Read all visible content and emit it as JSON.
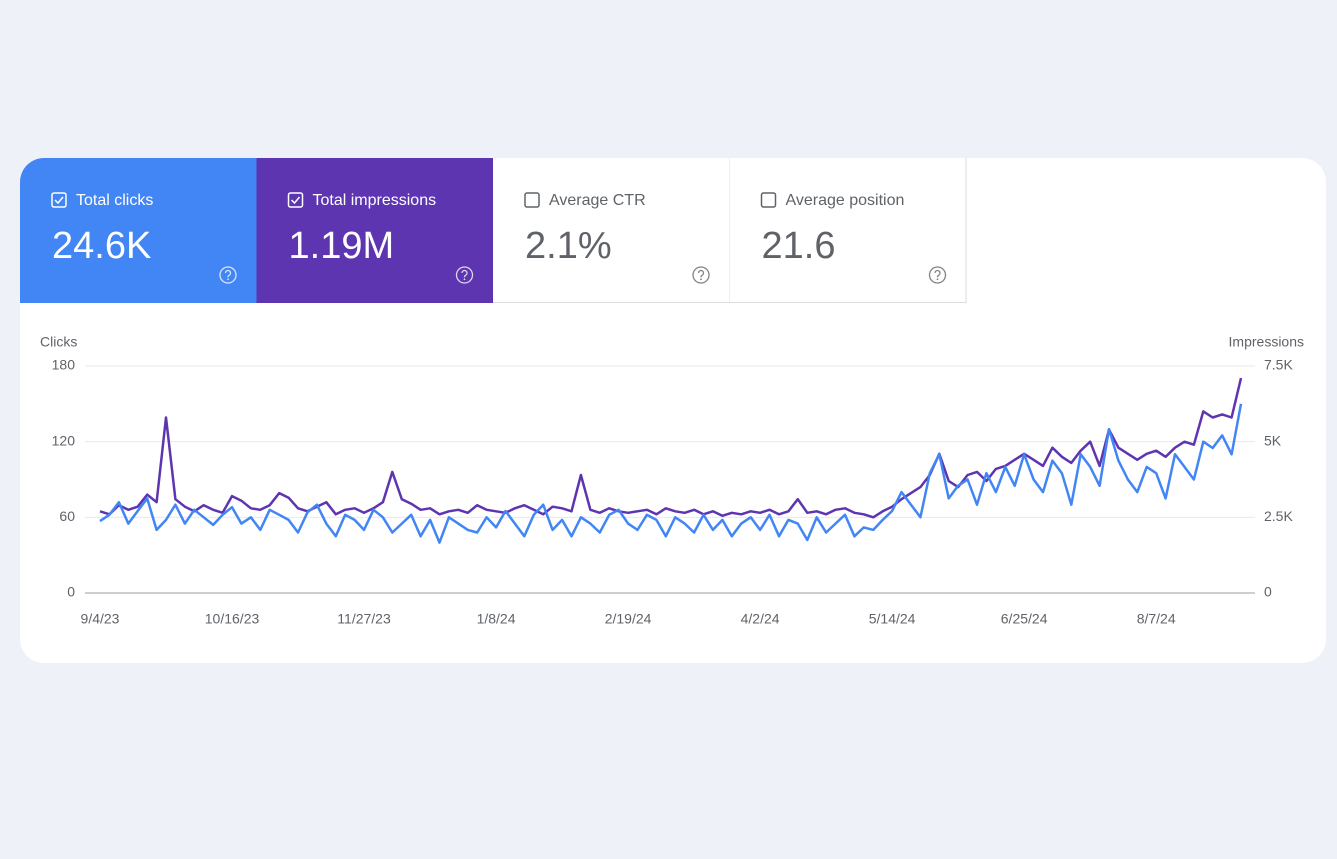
{
  "cards": [
    {
      "label": "Total clicks",
      "value": "24.6K",
      "checked": true,
      "color": "#4285f4"
    },
    {
      "label": "Total impressions",
      "value": "1.19M",
      "checked": true,
      "color": "#5e35b1"
    },
    {
      "label": "Average CTR",
      "value": "2.1%",
      "checked": false,
      "color": "#ffffff"
    },
    {
      "label": "Average position",
      "value": "21.6",
      "checked": false,
      "color": "#ffffff"
    }
  ],
  "chart_data": {
    "type": "line",
    "categories": [
      "9/4/23",
      null,
      null,
      null,
      null,
      null,
      null,
      null,
      null,
      null,
      null,
      null,
      null,
      null,
      "10/16/23",
      null,
      null,
      null,
      null,
      null,
      null,
      null,
      null,
      null,
      null,
      null,
      null,
      null,
      "11/27/23",
      null,
      null,
      null,
      null,
      null,
      null,
      null,
      null,
      null,
      null,
      null,
      null,
      null,
      "1/8/24",
      null,
      null,
      null,
      null,
      null,
      null,
      null,
      null,
      null,
      null,
      null,
      null,
      null,
      "2/19/24",
      null,
      null,
      null,
      null,
      null,
      null,
      null,
      null,
      null,
      null,
      null,
      null,
      null,
      "4/2/24",
      null,
      null,
      null,
      null,
      null,
      null,
      null,
      null,
      null,
      null,
      null,
      null,
      null,
      "5/14/24",
      null,
      null,
      null,
      null,
      null,
      null,
      null,
      null,
      null,
      null,
      null,
      null,
      null,
      "6/25/24",
      null,
      null,
      null,
      null,
      null,
      null,
      null,
      null,
      null,
      null,
      null,
      null,
      null,
      "8/7/24",
      null,
      null,
      null,
      null,
      null,
      null,
      null,
      null,
      null
    ],
    "series": [
      {
        "name": "Clicks",
        "color": "#4285f4",
        "values": [
          57,
          62,
          72,
          55,
          65,
          75,
          50,
          58,
          70,
          55,
          66,
          60,
          54,
          62,
          68,
          55,
          60,
          50,
          66,
          62,
          58,
          48,
          64,
          70,
          55,
          45,
          62,
          58,
          50,
          66,
          60,
          48,
          55,
          62,
          45,
          58,
          40,
          60,
          55,
          50,
          48,
          60,
          52,
          65,
          55,
          45,
          62,
          70,
          50,
          58,
          45,
          60,
          55,
          48,
          62,
          66,
          55,
          50,
          62,
          58,
          45,
          60,
          55,
          48,
          62,
          50,
          58,
          45,
          55,
          60,
          50,
          62,
          45,
          58,
          55,
          42,
          60,
          48,
          55,
          62,
          45,
          52,
          50,
          58,
          65,
          80,
          70,
          60,
          95,
          110,
          75,
          85,
          90,
          70,
          95,
          80,
          100,
          85,
          110,
          90,
          80,
          105,
          95,
          70,
          110,
          100,
          85,
          130,
          105,
          90,
          80,
          100,
          95,
          75,
          110,
          100,
          90,
          120,
          115,
          125,
          110,
          150
        ]
      },
      {
        "name": "Impressions",
        "color": "#5e35b1",
        "axis": "y2",
        "values": [
          2700,
          2600,
          2900,
          2750,
          2850,
          3250,
          3000,
          5800,
          3100,
          2850,
          2700,
          2900,
          2750,
          2650,
          3200,
          3050,
          2800,
          2750,
          2900,
          3300,
          3150,
          2800,
          2700,
          2850,
          3000,
          2600,
          2750,
          2800,
          2650,
          2800,
          3000,
          4000,
          3100,
          2950,
          2750,
          2800,
          2600,
          2700,
          2750,
          2650,
          2900,
          2750,
          2700,
          2650,
          2800,
          2900,
          2750,
          2600,
          2850,
          2800,
          2700,
          3900,
          2750,
          2650,
          2800,
          2700,
          2650,
          2700,
          2750,
          2600,
          2800,
          2700,
          2650,
          2750,
          2600,
          2700,
          2550,
          2650,
          2600,
          2700,
          2650,
          2750,
          2600,
          2700,
          3100,
          2650,
          2700,
          2600,
          2750,
          2800,
          2650,
          2600,
          2500,
          2700,
          2850,
          3100,
          3300,
          3500,
          3900,
          4600,
          3700,
          3500,
          3900,
          4000,
          3700,
          4100,
          4200,
          4400,
          4600,
          4400,
          4200,
          4800,
          4500,
          4300,
          4700,
          5000,
          4200,
          5400,
          4800,
          4600,
          4400,
          4600,
          4700,
          4500,
          4800,
          5000,
          4900,
          6000,
          5800,
          5900,
          5800,
          7100
        ]
      }
    ],
    "ylim": [
      0,
      180
    ],
    "yticks": [
      0,
      60,
      120,
      180
    ],
    "y2lim": [
      0,
      7500
    ],
    "y2ticks": [
      0,
      {
        "value": 2500,
        "label": "2.5K"
      },
      {
        "value": 5000,
        "label": "5K"
      },
      {
        "value": 7500,
        "label": "7.5K"
      }
    ],
    "grid": true
  }
}
